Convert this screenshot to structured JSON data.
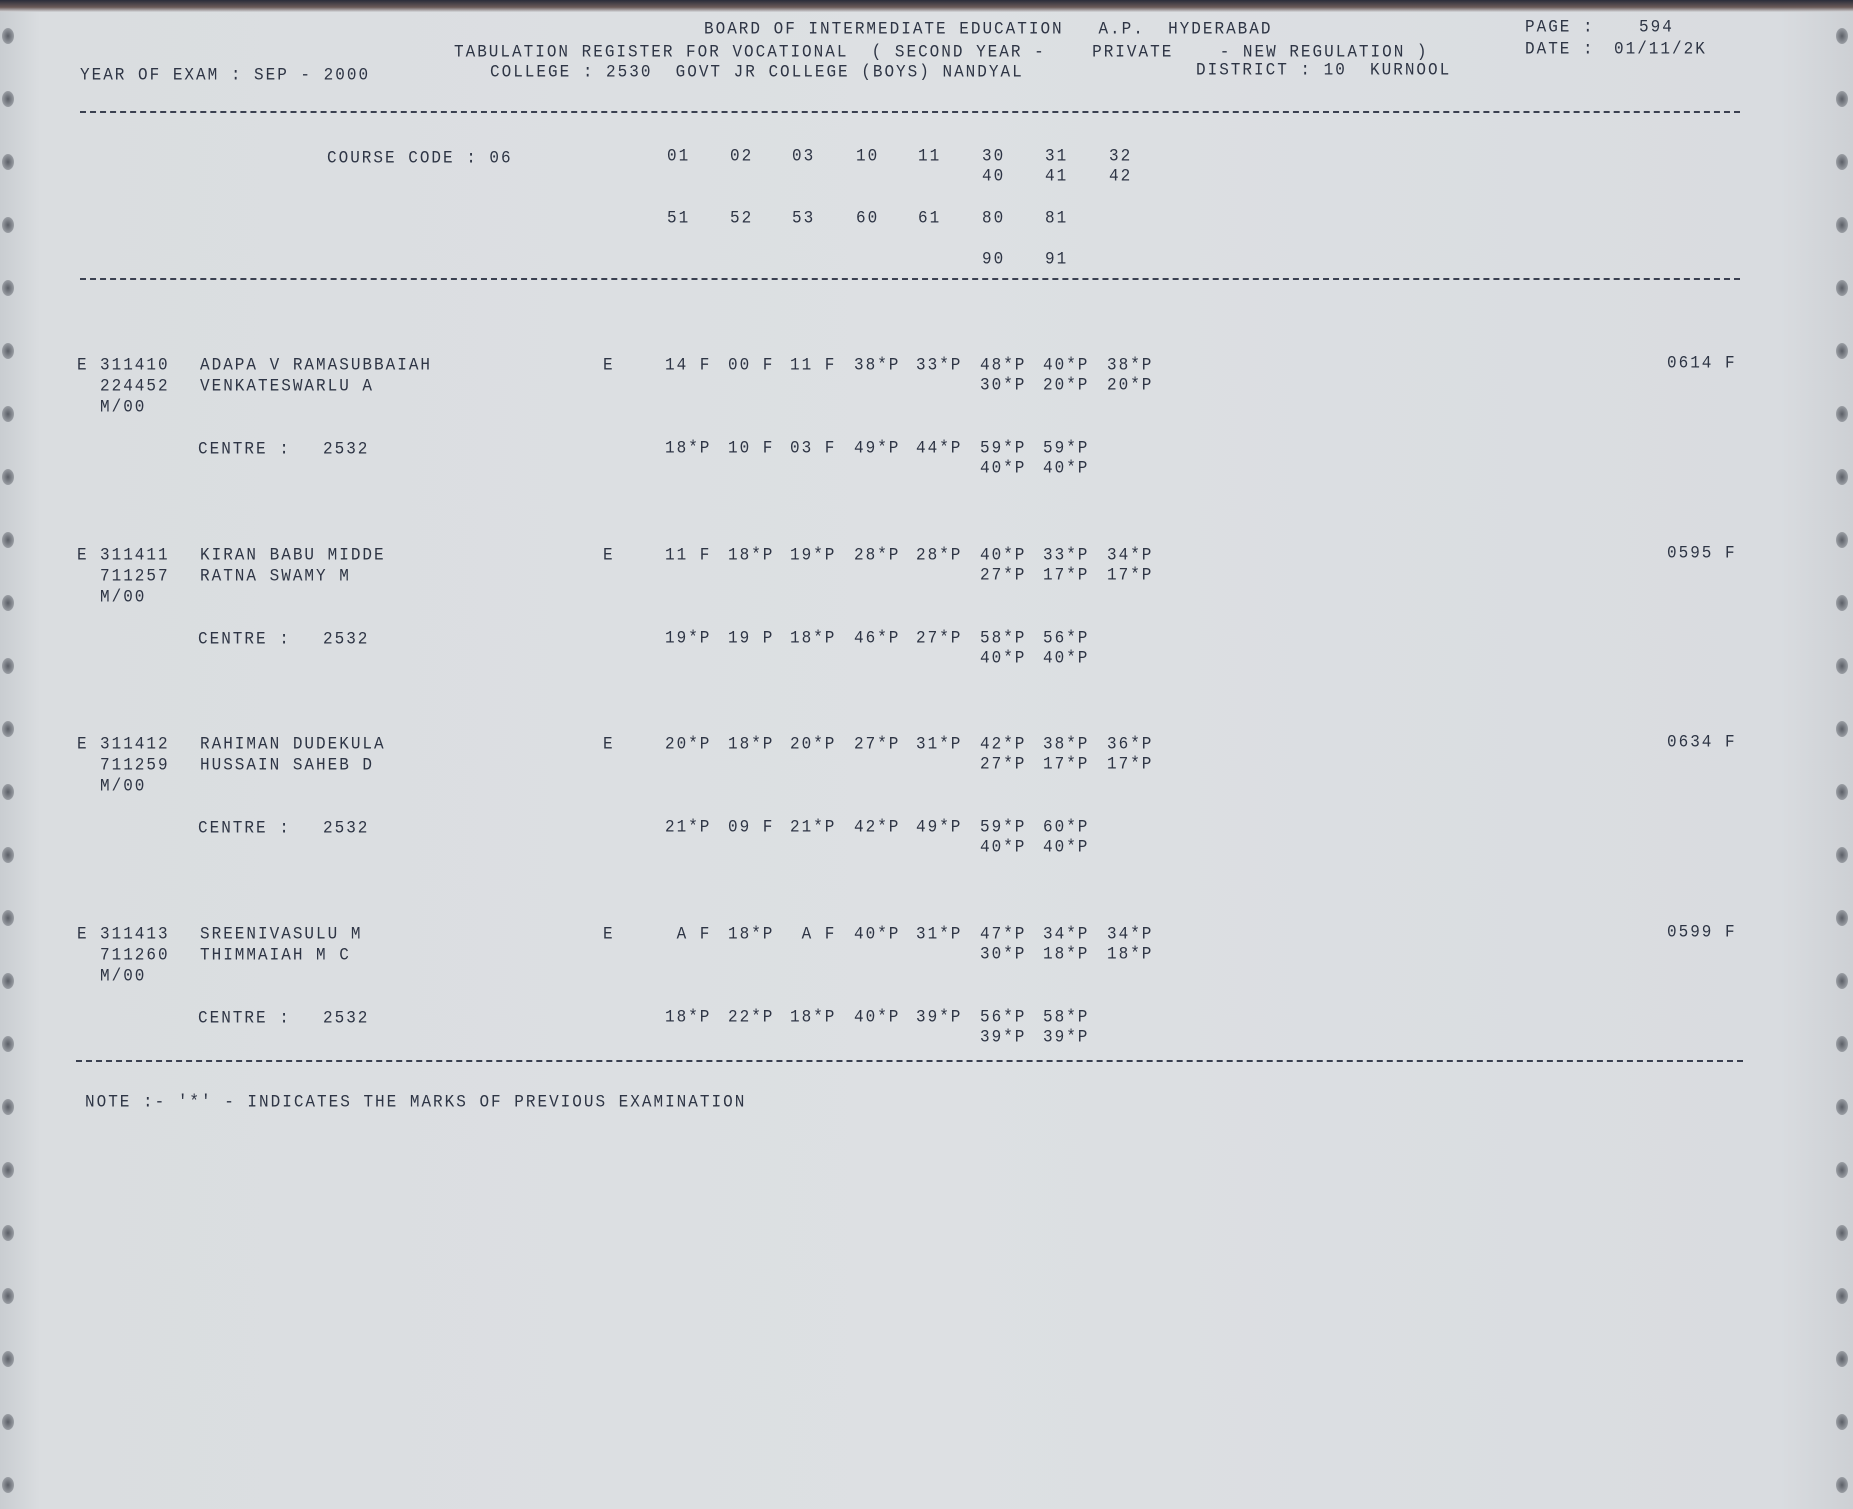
{
  "header": {
    "board": "BOARD OF INTERMEDIATE EDUCATION   A.P.  HYDERABAD",
    "page_label": "PAGE :",
    "page_number": "594",
    "register": "TABULATION REGISTER FOR VOCATIONAL  ( SECOND YEAR -    PRIVATE    - NEW REGULATION )",
    "date_label": "DATE :",
    "date": "01/11/2K",
    "year_of_exam": "YEAR OF EXAM : SEP - 2000",
    "college": "COLLEGE : 2530  GOVT JR COLLEGE (BOYS) NANDYAL",
    "district": "DISTRICT : 10  KURNOOL"
  },
  "course": {
    "label": "COURSE CODE : 06",
    "row1": [
      "01",
      "02",
      "03",
      "10",
      "11",
      "30",
      "31",
      "32"
    ],
    "row2": [
      "40",
      "41",
      "42"
    ],
    "row3": [
      "51",
      "52",
      "53",
      "60",
      "61",
      "80",
      "81"
    ],
    "row4": [
      "90",
      "91"
    ]
  },
  "students": [
    {
      "prefix": "E",
      "roll": "311410",
      "name": "ADAPA V RAMASUBBAIAH",
      "reg": "224452",
      "father": "VENKATESWARLU A",
      "code": "M/00",
      "medium": "E",
      "marks1": [
        "14 F",
        "00 F",
        "11 F",
        "38*P",
        "33*P",
        "48*P",
        "40*P",
        "38*P"
      ],
      "marks2": [
        "30*P",
        "20*P",
        "20*P"
      ],
      "centre_label": "CENTRE :",
      "centre": "2532",
      "marks3": [
        "18*P",
        "10 F",
        "03 F",
        "49*P",
        "44*P",
        "59*P",
        "59*P"
      ],
      "marks4": [
        "40*P",
        "40*P"
      ],
      "total": "0614 F"
    },
    {
      "prefix": "E",
      "roll": "311411",
      "name": "KIRAN BABU MIDDE",
      "reg": "711257",
      "father": "RATNA SWAMY M",
      "code": "M/00",
      "medium": "E",
      "marks1": [
        "11 F",
        "18*P",
        "19*P",
        "28*P",
        "28*P",
        "40*P",
        "33*P",
        "34*P"
      ],
      "marks2": [
        "27*P",
        "17*P",
        "17*P"
      ],
      "centre_label": "CENTRE :",
      "centre": "2532",
      "marks3": [
        "19*P",
        "19 P",
        "18*P",
        "46*P",
        "27*P",
        "58*P",
        "56*P"
      ],
      "marks4": [
        "40*P",
        "40*P"
      ],
      "total": "0595 F"
    },
    {
      "prefix": "E",
      "roll": "311412",
      "name": "RAHIMAN DUDEKULA",
      "reg": "711259",
      "father": "HUSSAIN SAHEB D",
      "code": "M/00",
      "medium": "E",
      "marks1": [
        "20*P",
        "18*P",
        "20*P",
        "27*P",
        "31*P",
        "42*P",
        "38*P",
        "36*P"
      ],
      "marks2": [
        "27*P",
        "17*P",
        "17*P"
      ],
      "centre_label": "CENTRE :",
      "centre": "2532",
      "marks3": [
        "21*P",
        "09 F",
        "21*P",
        "42*P",
        "49*P",
        "59*P",
        "60*P"
      ],
      "marks4": [
        "40*P",
        "40*P"
      ],
      "total": "0634 F"
    },
    {
      "prefix": "E",
      "roll": "311413",
      "name": "SREENIVASULU M",
      "reg": "711260",
      "father": "THIMMAIAH M C",
      "code": "M/00",
      "medium": "E",
      "marks1": [
        " A F",
        "18*P",
        " A F",
        "40*P",
        "31*P",
        "47*P",
        "34*P",
        "34*P"
      ],
      "marks2": [
        "30*P",
        "18*P",
        "18*P"
      ],
      "centre_label": "CENTRE :",
      "centre": "2532",
      "marks3": [
        "18*P",
        "22*P",
        "18*P",
        "40*P",
        "39*P",
        "56*P",
        "58*P"
      ],
      "marks4": [
        "39*P",
        "39*P"
      ],
      "total": "0599 F"
    }
  ],
  "note": "NOTE :- '*' - INDICATES THE MARKS OF PREVIOUS EXAMINATION"
}
